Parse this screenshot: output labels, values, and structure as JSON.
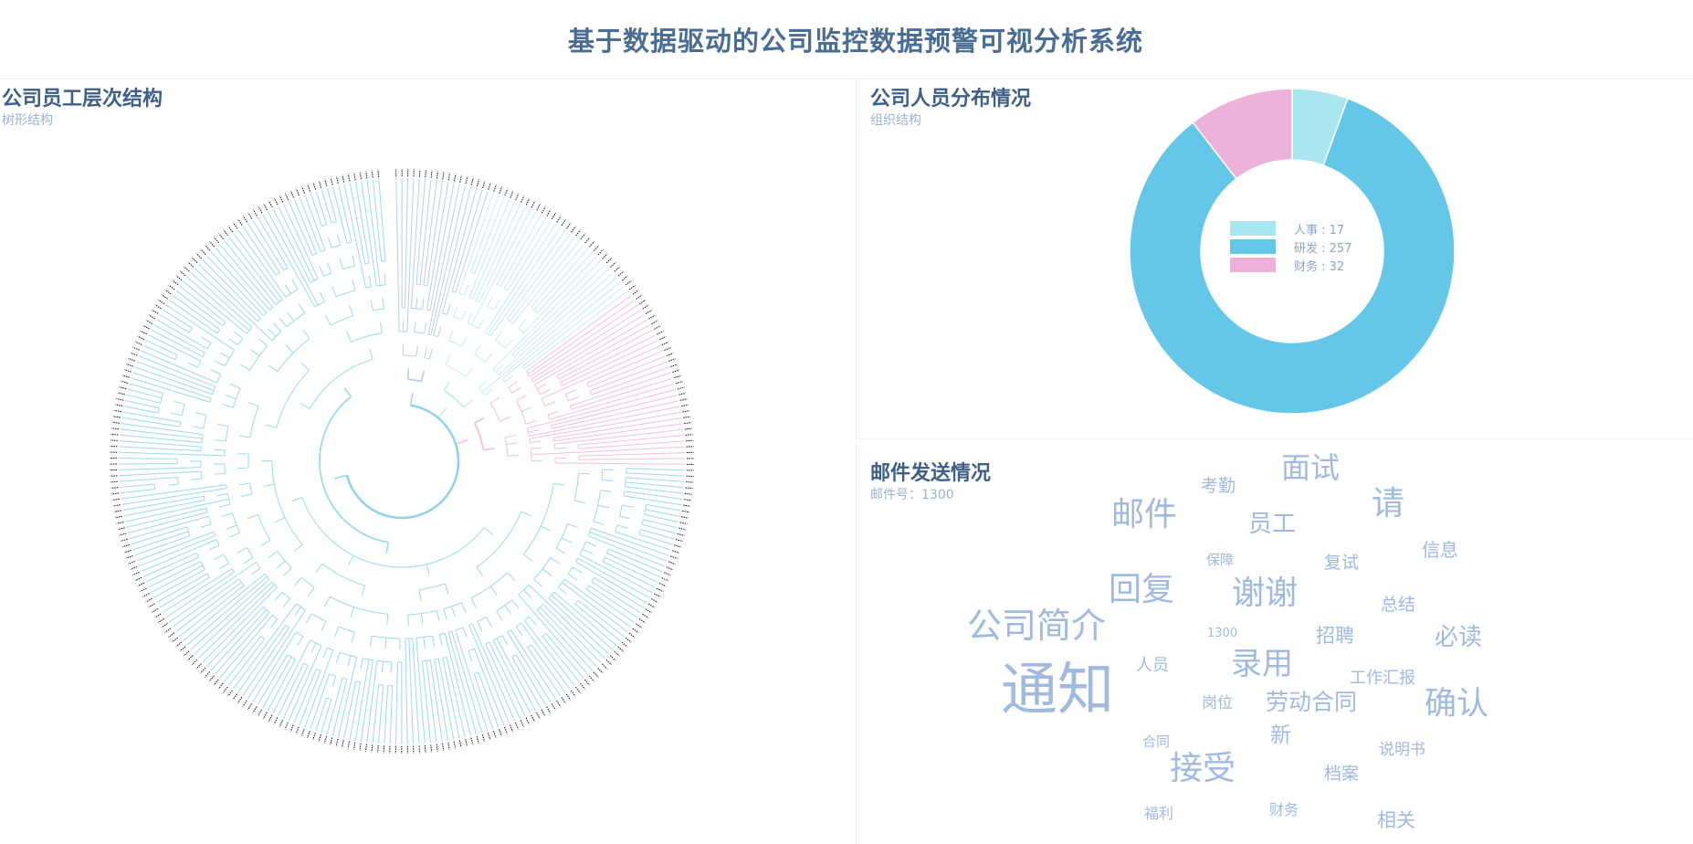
{
  "header": {
    "title": "基于数据驱动的公司监控数据预警可视分析系统"
  },
  "tree_panel": {
    "title": "公司员工层次结构",
    "subtitle": "树形结构"
  },
  "dist_panel": {
    "title": "公司人员分布情况",
    "subtitle": "组织结构",
    "legend": [
      {
        "label": "人事 : 17",
        "color": "#a9e6ef"
      },
      {
        "label": "研发 : 257",
        "color": "#65c7e8"
      },
      {
        "label": "财务 : 32",
        "color": "#ecb2da"
      }
    ]
  },
  "mail_panel": {
    "title": "邮件发送情况",
    "subtitle": "邮件号：1300"
  },
  "chart_data": {
    "type": "pie",
    "categories": [
      "人事",
      "研发",
      "财务"
    ],
    "values": [
      17,
      257,
      32
    ],
    "colors": [
      "#a9e6ef",
      "#65c7e8",
      "#ecb2da"
    ],
    "donut": true,
    "legend_placement": "center"
  },
  "word_cloud": [
    {
      "text": "面试",
      "size": 32
    },
    {
      "text": "考勤",
      "size": 19
    },
    {
      "text": "请",
      "size": 36
    },
    {
      "text": "邮件",
      "size": 36
    },
    {
      "text": "员工",
      "size": 26
    },
    {
      "text": "信息",
      "size": 20
    },
    {
      "text": "保障",
      "size": 15
    },
    {
      "text": "复试",
      "size": 19
    },
    {
      "text": "回复",
      "size": 36
    },
    {
      "text": "谢谢",
      "size": 36
    },
    {
      "text": "总结",
      "size": 19
    },
    {
      "text": "公司简介",
      "size": 38
    },
    {
      "text": "1300",
      "size": 13
    },
    {
      "text": "招聘",
      "size": 21
    },
    {
      "text": "必读",
      "size": 26
    },
    {
      "text": "人员",
      "size": 18
    },
    {
      "text": "录用",
      "size": 34
    },
    {
      "text": "工作汇报",
      "size": 18
    },
    {
      "text": "通知",
      "size": 62
    },
    {
      "text": "岗位",
      "size": 17
    },
    {
      "text": "劳动合同",
      "size": 25
    },
    {
      "text": "确认",
      "size": 35
    },
    {
      "text": "合同",
      "size": 15
    },
    {
      "text": "新",
      "size": 23
    },
    {
      "text": "说明书",
      "size": 17
    },
    {
      "text": "接受",
      "size": 36
    },
    {
      "text": "档案",
      "size": 19
    },
    {
      "text": "福利",
      "size": 16
    },
    {
      "text": "财务",
      "size": 16
    },
    {
      "text": "相关",
      "size": 21
    }
  ]
}
